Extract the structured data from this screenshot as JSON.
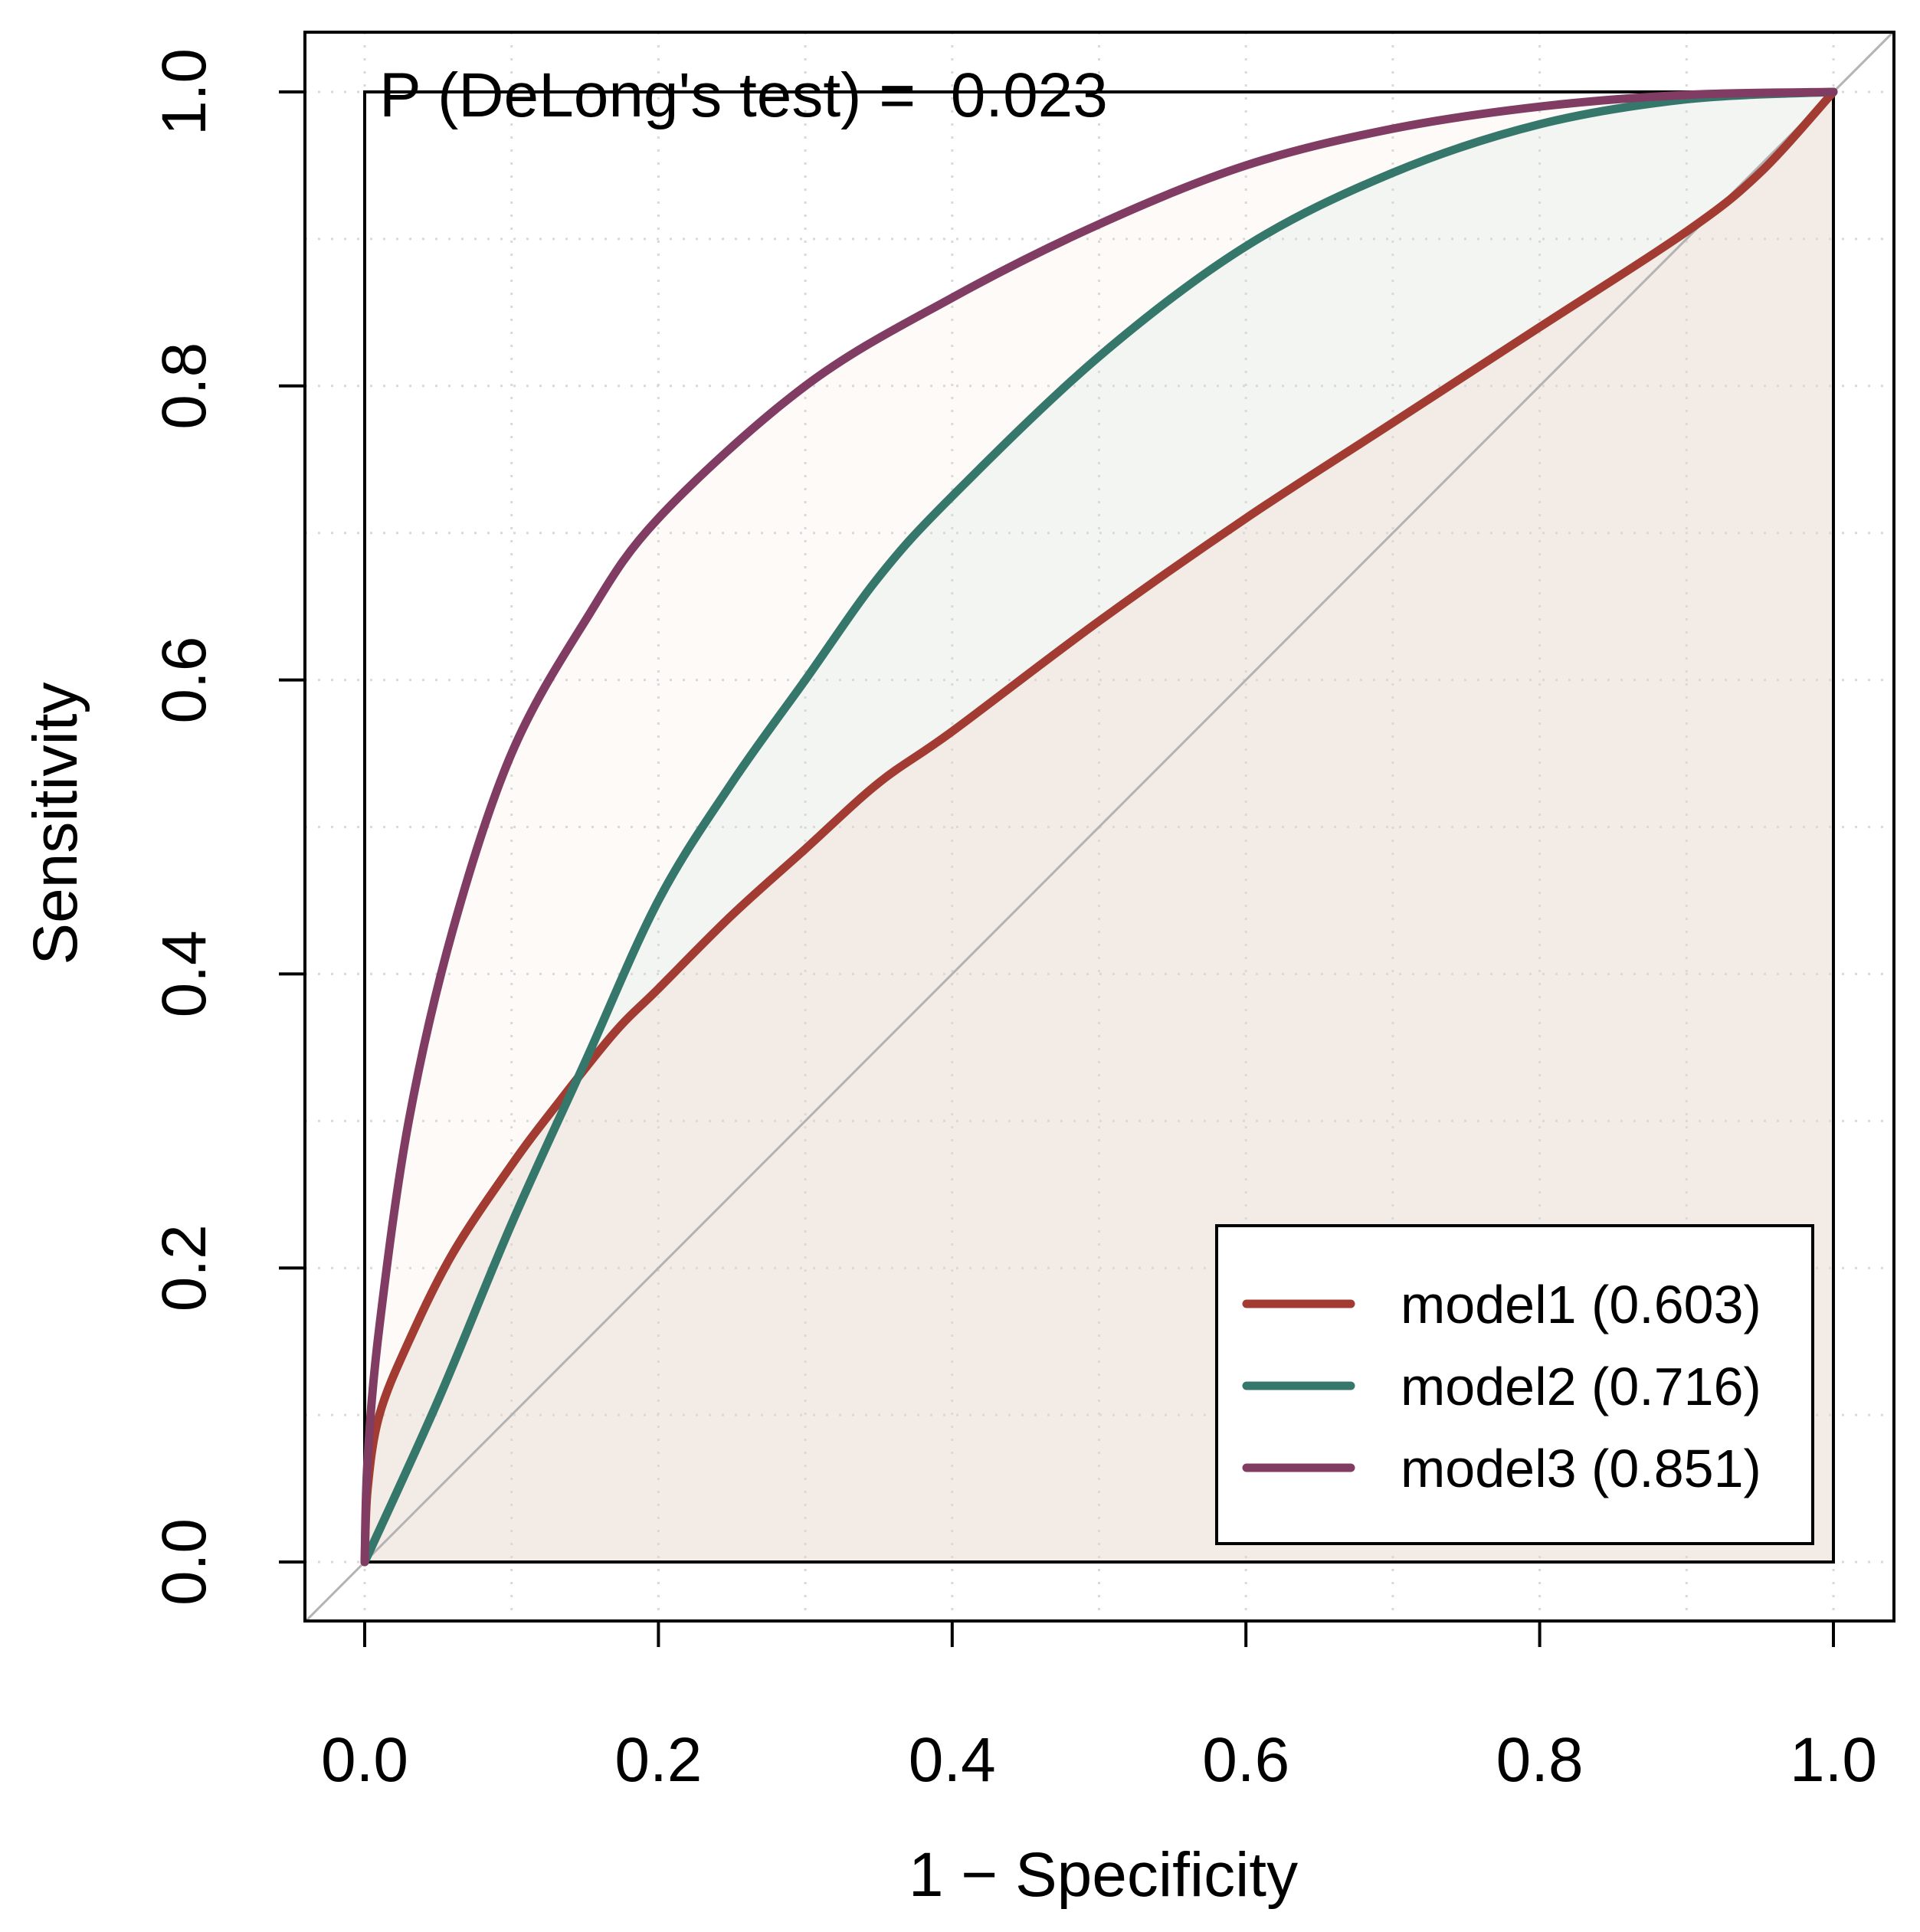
{
  "chart_data": {
    "type": "line",
    "title": "",
    "xlabel": "1 − Specificity",
    "ylabel": "Sensitivity",
    "xlim": [
      -0.04,
      1.04
    ],
    "ylim": [
      -0.04,
      1.04
    ],
    "x_ticks": [
      "0.0",
      "0.2",
      "0.4",
      "0.6",
      "0.8",
      "1.0"
    ],
    "y_ticks": [
      "0.0",
      "0.2",
      "0.4",
      "0.6",
      "0.8",
      "1.0"
    ],
    "grid": true,
    "annotation": "P (DeLong's test) =  0.023",
    "legend_position": "bottom-right",
    "reference_line": {
      "x": [
        0,
        1
      ],
      "y": [
        0,
        1
      ],
      "color": "#b3b3b3"
    },
    "series": [
      {
        "name": "model1 (0.603)",
        "color": "#a23b31",
        "fill": "#f2ebe6",
        "x": [
          0,
          0.002,
          0.01,
          0.03,
          0.06,
          0.1,
          0.13,
          0.17,
          0.2,
          0.25,
          0.3,
          0.35,
          0.4,
          0.5,
          0.6,
          0.7,
          0.8,
          0.9,
          0.95,
          1.0
        ],
        "y": [
          0,
          0.05,
          0.1,
          0.15,
          0.21,
          0.27,
          0.31,
          0.36,
          0.39,
          0.44,
          0.485,
          0.53,
          0.565,
          0.64,
          0.71,
          0.775,
          0.84,
          0.905,
          0.945,
          1.0
        ]
      },
      {
        "name": "model2 (0.716)",
        "color": "#36776b",
        "fill": "#f3f5f2",
        "x": [
          0,
          0.05,
          0.1,
          0.15,
          0.2,
          0.25,
          0.3,
          0.35,
          0.4,
          0.5,
          0.6,
          0.7,
          0.8,
          0.9,
          1.0
        ],
        "y": [
          0,
          0.11,
          0.23,
          0.34,
          0.45,
          0.53,
          0.6,
          0.67,
          0.725,
          0.82,
          0.895,
          0.945,
          0.978,
          0.995,
          1.0
        ]
      },
      {
        "name": "model3 (0.851)",
        "color": "#803c62",
        "fill": "#fdfaf8",
        "x": [
          0,
          0.002,
          0.01,
          0.03,
          0.06,
          0.1,
          0.15,
          0.2,
          0.3,
          0.4,
          0.5,
          0.6,
          0.7,
          0.8,
          0.9,
          1.0
        ],
        "y": [
          0,
          0.07,
          0.16,
          0.3,
          0.43,
          0.55,
          0.64,
          0.71,
          0.8,
          0.86,
          0.91,
          0.95,
          0.975,
          0.99,
          0.998,
          1.0
        ]
      }
    ]
  }
}
